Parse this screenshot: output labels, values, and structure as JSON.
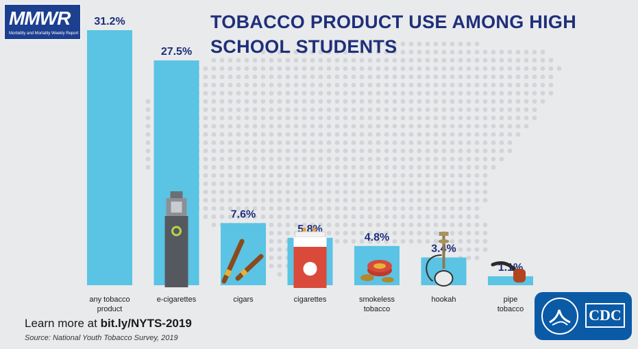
{
  "logo": {
    "name": "MMWR",
    "subtitle": "Morbidity and Mortality Weekly Report"
  },
  "title": "TOBACCO PRODUCT USE AMONG HIGH SCHOOL STUDENTS",
  "footer": {
    "learn_prefix": "Learn more at ",
    "learn_link": "bit.ly/NYTS-2019",
    "source": "Source: National Youth Tobacco Survey, 2019"
  },
  "cdc_logo": {
    "text": "CDC"
  },
  "colors": {
    "bar": "#5bc3e4",
    "value_label": "#1f2f7a",
    "title": "#1f2f7a",
    "background": "#e9eaec",
    "map_dots": "#d2d4d8"
  },
  "chart_data": {
    "type": "bar",
    "title": "TOBACCO PRODUCT USE AMONG HIGH SCHOOL STUDENTS",
    "xlabel": "",
    "ylabel": "",
    "ylim": [
      0,
      31.2
    ],
    "unit": "%",
    "grid": false,
    "categories": [
      [
        "any tobacco",
        "product"
      ],
      [
        "e-cigarettes"
      ],
      [
        "cigars"
      ],
      [
        "cigarettes"
      ],
      [
        "smokeless",
        "tobacco"
      ],
      [
        "hookah"
      ],
      [
        "pipe",
        "tobacco"
      ]
    ],
    "values": [
      31.2,
      27.5,
      7.6,
      5.8,
      4.8,
      3.4,
      1.1
    ],
    "value_labels": [
      "31.2%",
      "27.5%",
      "7.6%",
      "5.8%",
      "4.8%",
      "3.4%",
      "1.1%"
    ],
    "icons": [
      "",
      "e-cigarette-icon",
      "cigars-icon",
      "cigarette-pack-icon",
      "smokeless-tobacco-tin-icon",
      "hookah-icon",
      "pipe-icon"
    ]
  }
}
